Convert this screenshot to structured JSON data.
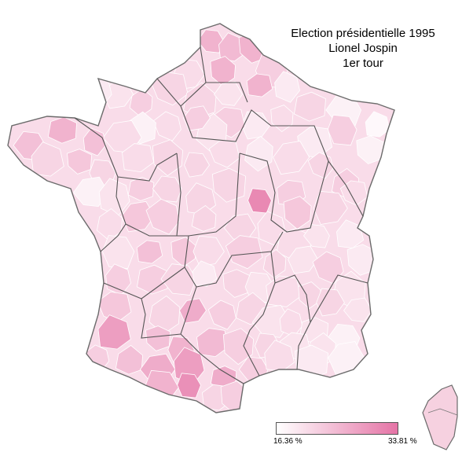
{
  "title": {
    "line1": "Election présidentielle 1995",
    "line2": "Lionel Jospin",
    "line3": "1er tour"
  },
  "legend": {
    "min_label": "16.36 %",
    "max_label": "33.81 %",
    "color_min": "#ffffff",
    "color_max": "#e574a6"
  },
  "colors": {
    "outline": "#6b6b6b",
    "region_border": "#555555",
    "background": "#ffffff"
  }
}
